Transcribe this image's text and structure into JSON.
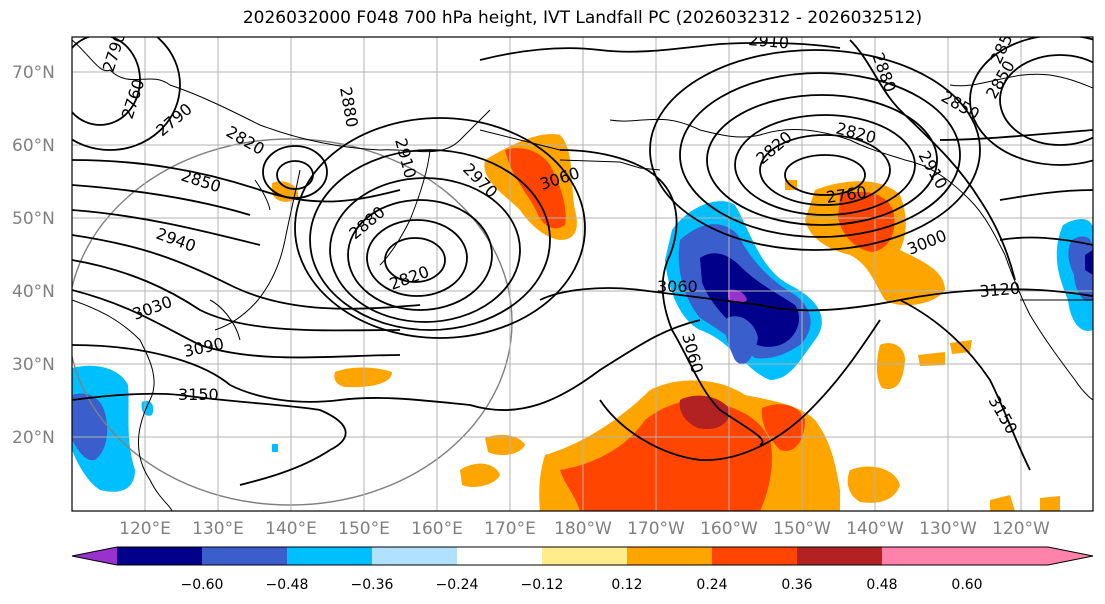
{
  "title": "2026032000 F048 700 hPa height, IVT Landfall PC (2026032312 - 2026032512)",
  "lat_ticks": [
    "70°N",
    "60°N",
    "50°N",
    "40°N",
    "30°N",
    "20°N"
  ],
  "lon_ticks": [
    "120°E",
    "130°E",
    "140°E",
    "150°E",
    "160°E",
    "170°E",
    "180°W",
    "170°W",
    "160°W",
    "150°W",
    "140°W",
    "130°W",
    "120°W"
  ],
  "contour_labels": {
    "c2790a": "2790",
    "c2760a": "2760",
    "c2790b": "2790",
    "c2820a": "2820",
    "c2880a": "2880",
    "c2910a": "2910",
    "c2880b": "2880",
    "c2850a": "2850",
    "c2850b": "2850",
    "c2970": "2970",
    "c3060a": "3060",
    "c2910b": "2910",
    "c2820b": "2820",
    "c2760b": "2760",
    "c2940": "2940",
    "c2880c": "2880",
    "c2850c": "2850",
    "c3000": "3000",
    "c3030": "3030",
    "c3060b": "3060",
    "c3120": "3120",
    "c3090": "3090",
    "c3060c": "3060",
    "c3150a": "3150",
    "c3150b": "3150",
    "c2820c": "2820",
    "c2910c": "2910",
    "c2850d": "2850",
    "c2820d": "2820"
  },
  "colorbar": {
    "colors": [
      "#9932cc",
      "#00008b",
      "#3a5fcd",
      "#00bfff",
      "#b0e2ff",
      "#ffffff",
      "#ffec8b",
      "#ffa500",
      "#ff4500",
      "#b22222",
      "#ff82ab"
    ],
    "ticks": [
      "−0.60",
      "−0.48",
      "−0.36",
      "−0.24",
      "−0.12",
      "0.12",
      "0.24",
      "0.36",
      "0.48",
      "0.60"
    ]
  }
}
